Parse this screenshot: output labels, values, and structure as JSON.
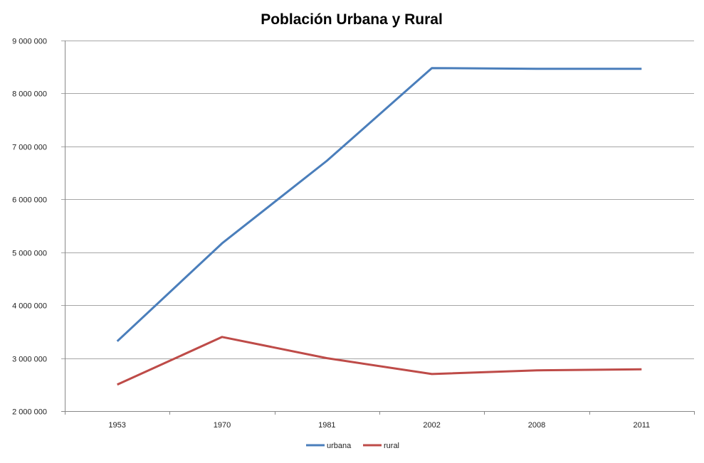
{
  "chart_data": {
    "type": "line",
    "title": "Población Urbana y Rural",
    "xlabel": "",
    "ylabel": "",
    "categories": [
      "1953",
      "1970",
      "1981",
      "2002",
      "2008",
      "2011"
    ],
    "series": [
      {
        "name": "urbana",
        "color": "#4a7ebb",
        "values": [
          3320000,
          5170000,
          6730000,
          8480000,
          8465000,
          8465000
        ]
      },
      {
        "name": "rural",
        "color": "#be4b48",
        "values": [
          2500000,
          3400000,
          3000000,
          2700000,
          2770000,
          2790000
        ]
      }
    ],
    "ylim": [
      2000000,
      9000000
    ],
    "yticks": [
      2000000,
      3000000,
      4000000,
      5000000,
      6000000,
      7000000,
      8000000,
      9000000
    ],
    "ytick_labels": [
      "2 000 000",
      "3 000 000",
      "4 000 000",
      "5 000 000",
      "6 000 000",
      "7 000 000",
      "8 000 000",
      "9 000 000"
    ],
    "grid": true,
    "legend_position": "bottom"
  }
}
